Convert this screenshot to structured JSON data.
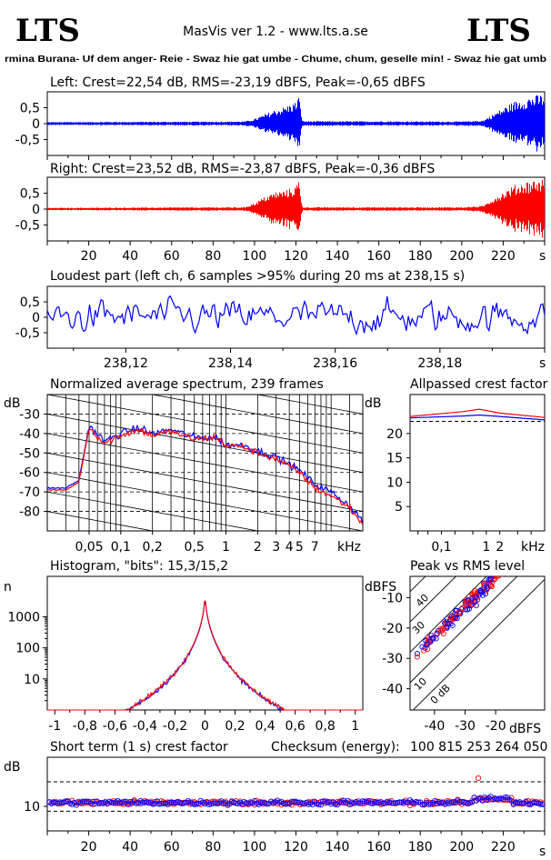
{
  "header": {
    "logo_left": "LTS",
    "logo_right": "LTS",
    "app_title": "MasVis ver 1.2 - www.lts.a.se",
    "track_title": "rmina Burana- Uf dem anger- Reie - Swaz hie gat umbe - Chume, chum, geselle min! - Swaz hie gat umb"
  },
  "colors": {
    "left": "#0000ff",
    "right": "#ff0000",
    "axis": "#000000",
    "grid": "#000000"
  },
  "chart_data": [
    {
      "id": "left_waveform",
      "type": "area",
      "title": "Left: Crest=22,54 dB, RMS=-23,19 dBFS, Peak=-0,65 dBFS",
      "yticks": [
        "0,5",
        "0",
        "-0,5"
      ],
      "ylim": [
        -1,
        1
      ],
      "xlim": [
        0,
        240
      ],
      "envelope": [
        [
          0,
          0.05
        ],
        [
          40,
          0.06
        ],
        [
          95,
          0.07
        ],
        [
          100,
          0.15
        ],
        [
          105,
          0.3
        ],
        [
          110,
          0.45
        ],
        [
          115,
          0.55
        ],
        [
          120,
          0.7
        ],
        [
          121,
          0.95
        ],
        [
          123,
          0.08
        ],
        [
          200,
          0.07
        ],
        [
          210,
          0.1
        ],
        [
          215,
          0.3
        ],
        [
          220,
          0.5
        ],
        [
          225,
          0.7
        ],
        [
          232,
          0.85
        ],
        [
          240,
          0.95
        ]
      ]
    },
    {
      "id": "right_waveform",
      "type": "area",
      "title": "Right: Crest=23,52 dB, RMS=-23,87 dBFS, Peak=-0,36 dBFS",
      "yticks": [
        "0,5",
        "0",
        "-0,5"
      ],
      "ylim": [
        -1,
        1
      ],
      "xlabel_unit": "s",
      "xticks": [
        "20",
        "40",
        "60",
        "80",
        "100",
        "120",
        "140",
        "160",
        "180",
        "200",
        "220"
      ],
      "xlim": [
        0,
        240
      ],
      "envelope": [
        [
          0,
          0.04
        ],
        [
          40,
          0.05
        ],
        [
          95,
          0.06
        ],
        [
          100,
          0.2
        ],
        [
          105,
          0.4
        ],
        [
          110,
          0.55
        ],
        [
          115,
          0.6
        ],
        [
          120,
          0.75
        ],
        [
          121,
          0.97
        ],
        [
          123,
          0.06
        ],
        [
          200,
          0.06
        ],
        [
          210,
          0.1
        ],
        [
          215,
          0.35
        ],
        [
          220,
          0.55
        ],
        [
          225,
          0.75
        ],
        [
          232,
          0.9
        ],
        [
          240,
          0.97
        ]
      ]
    },
    {
      "id": "loudest_part",
      "type": "line",
      "title": "Loudest part (left  ch, 6 samples >95% during 20 ms at 238,15 s)",
      "yticks": [
        "0,5",
        "0",
        "-0,5"
      ],
      "ylim": [
        -1,
        1
      ],
      "xticks": [
        "238,12",
        "238,14",
        "238,16",
        "238,18"
      ],
      "xlabel_unit": "s",
      "xlim": [
        238.105,
        238.2
      ],
      "samples": 260
    },
    {
      "id": "spectrum",
      "type": "line",
      "title": "Normalized average spectrum, 239 frames",
      "ylabel": "dB",
      "yticks": [
        "-30",
        "-40",
        "-50",
        "-60",
        "-70",
        "-80"
      ],
      "ylim": [
        -90,
        -20
      ],
      "xticks": [
        "0,05",
        "0,1",
        "0,2",
        "0,5",
        "1",
        "2",
        "3",
        "4",
        "5",
        "7"
      ],
      "xlabel_unit": "kHz",
      "xlim": [
        0.02,
        20
      ],
      "series": [
        {
          "color": "left",
          "points": [
            [
              0.02,
              -68
            ],
            [
              0.03,
              -68
            ],
            [
              0.04,
              -64
            ],
            [
              0.05,
              -36
            ],
            [
              0.07,
              -44
            ],
            [
              0.1,
              -40
            ],
            [
              0.15,
              -37
            ],
            [
              0.2,
              -40
            ],
            [
              0.3,
              -38
            ],
            [
              0.5,
              -42
            ],
            [
              0.8,
              -42
            ],
            [
              1,
              -46
            ],
            [
              1.5,
              -46
            ],
            [
              2,
              -49
            ],
            [
              3,
              -52
            ],
            [
              5,
              -59
            ],
            [
              7,
              -66
            ],
            [
              10,
              -70
            ],
            [
              15,
              -77
            ],
            [
              20,
              -85
            ]
          ]
        },
        {
          "color": "right",
          "points": [
            [
              0.02,
              -69
            ],
            [
              0.03,
              -69
            ],
            [
              0.04,
              -65
            ],
            [
              0.05,
              -37
            ],
            [
              0.07,
              -45
            ],
            [
              0.1,
              -41
            ],
            [
              0.15,
              -38
            ],
            [
              0.2,
              -41
            ],
            [
              0.3,
              -39
            ],
            [
              0.5,
              -43
            ],
            [
              0.8,
              -42
            ],
            [
              1,
              -46
            ],
            [
              1.5,
              -47
            ],
            [
              2,
              -50
            ],
            [
              3,
              -53
            ],
            [
              5,
              -60
            ],
            [
              7,
              -68
            ],
            [
              10,
              -72
            ],
            [
              15,
              -78
            ],
            [
              20,
              -87
            ]
          ]
        }
      ]
    },
    {
      "id": "allpassed_crest",
      "type": "line",
      "title": "Allpassed crest factor",
      "ylabel": "dB",
      "yticks": [
        "20",
        "15",
        "10",
        "5"
      ],
      "ylim": [
        0,
        28
      ],
      "xticks": [
        "0,1",
        "1",
        "2"
      ],
      "xlabel_unit": "kHz",
      "xlim": [
        0.02,
        20
      ],
      "series": [
        {
          "color": "left",
          "points": [
            [
              0.02,
              23.2
            ],
            [
              0.3,
              23.6
            ],
            [
              0.7,
              23.8
            ],
            [
              2,
              23.5
            ],
            [
              20,
              22.8
            ]
          ]
        },
        {
          "color": "right",
          "points": [
            [
              0.02,
              23.5
            ],
            [
              0.3,
              24.5
            ],
            [
              0.7,
              25.0
            ],
            [
              2,
              24.2
            ],
            [
              20,
              23.3
            ]
          ]
        }
      ],
      "reference": 22.5
    },
    {
      "id": "histogram",
      "type": "line",
      "title": "Histogram, \"bits\": 15,3/15,2",
      "ylabel": "n",
      "yticks": [
        "1000",
        "100",
        "10"
      ],
      "xticks": [
        "-1",
        "-0,8",
        "-0,6",
        "-0,4",
        "-0,2",
        "0",
        "0,2",
        "0,4",
        "0,6",
        "0,8",
        "1"
      ],
      "xlim": [
        -1.05,
        1.05
      ],
      "ylim_log10": [
        0,
        4.3
      ]
    },
    {
      "id": "peak_vs_rms",
      "type": "scatter",
      "title": "Peak vs RMS level",
      "ylabel": "dBFS",
      "xlabel_unit": "dBFS",
      "yticks": [
        "-10",
        "-20",
        "-30",
        "-40"
      ],
      "xticks": [
        "-40",
        "-30",
        "-20"
      ],
      "xlim": [
        -48,
        -4
      ],
      "ylim": [
        -47,
        -3
      ],
      "diagonals": [
        "40",
        "30",
        "20",
        "10",
        "0 dB"
      ],
      "points_count": 220
    },
    {
      "id": "short_term_crest",
      "type": "scatter",
      "title": "Short term (1 s) crest factor",
      "ylabel": "dB",
      "yticks": [
        "10"
      ],
      "xticks": [
        "20",
        "40",
        "60",
        "80",
        "100",
        "120",
        "140",
        "160",
        "180",
        "200",
        "220"
      ],
      "xlabel_unit": "s",
      "xlim": [
        0,
        240
      ],
      "ylim": [
        0,
        30
      ],
      "dashed_levels": [
        20,
        8
      ]
    }
  ],
  "checksum": {
    "label": "Checksum (energy):",
    "value": "100 815 253 264 050"
  }
}
